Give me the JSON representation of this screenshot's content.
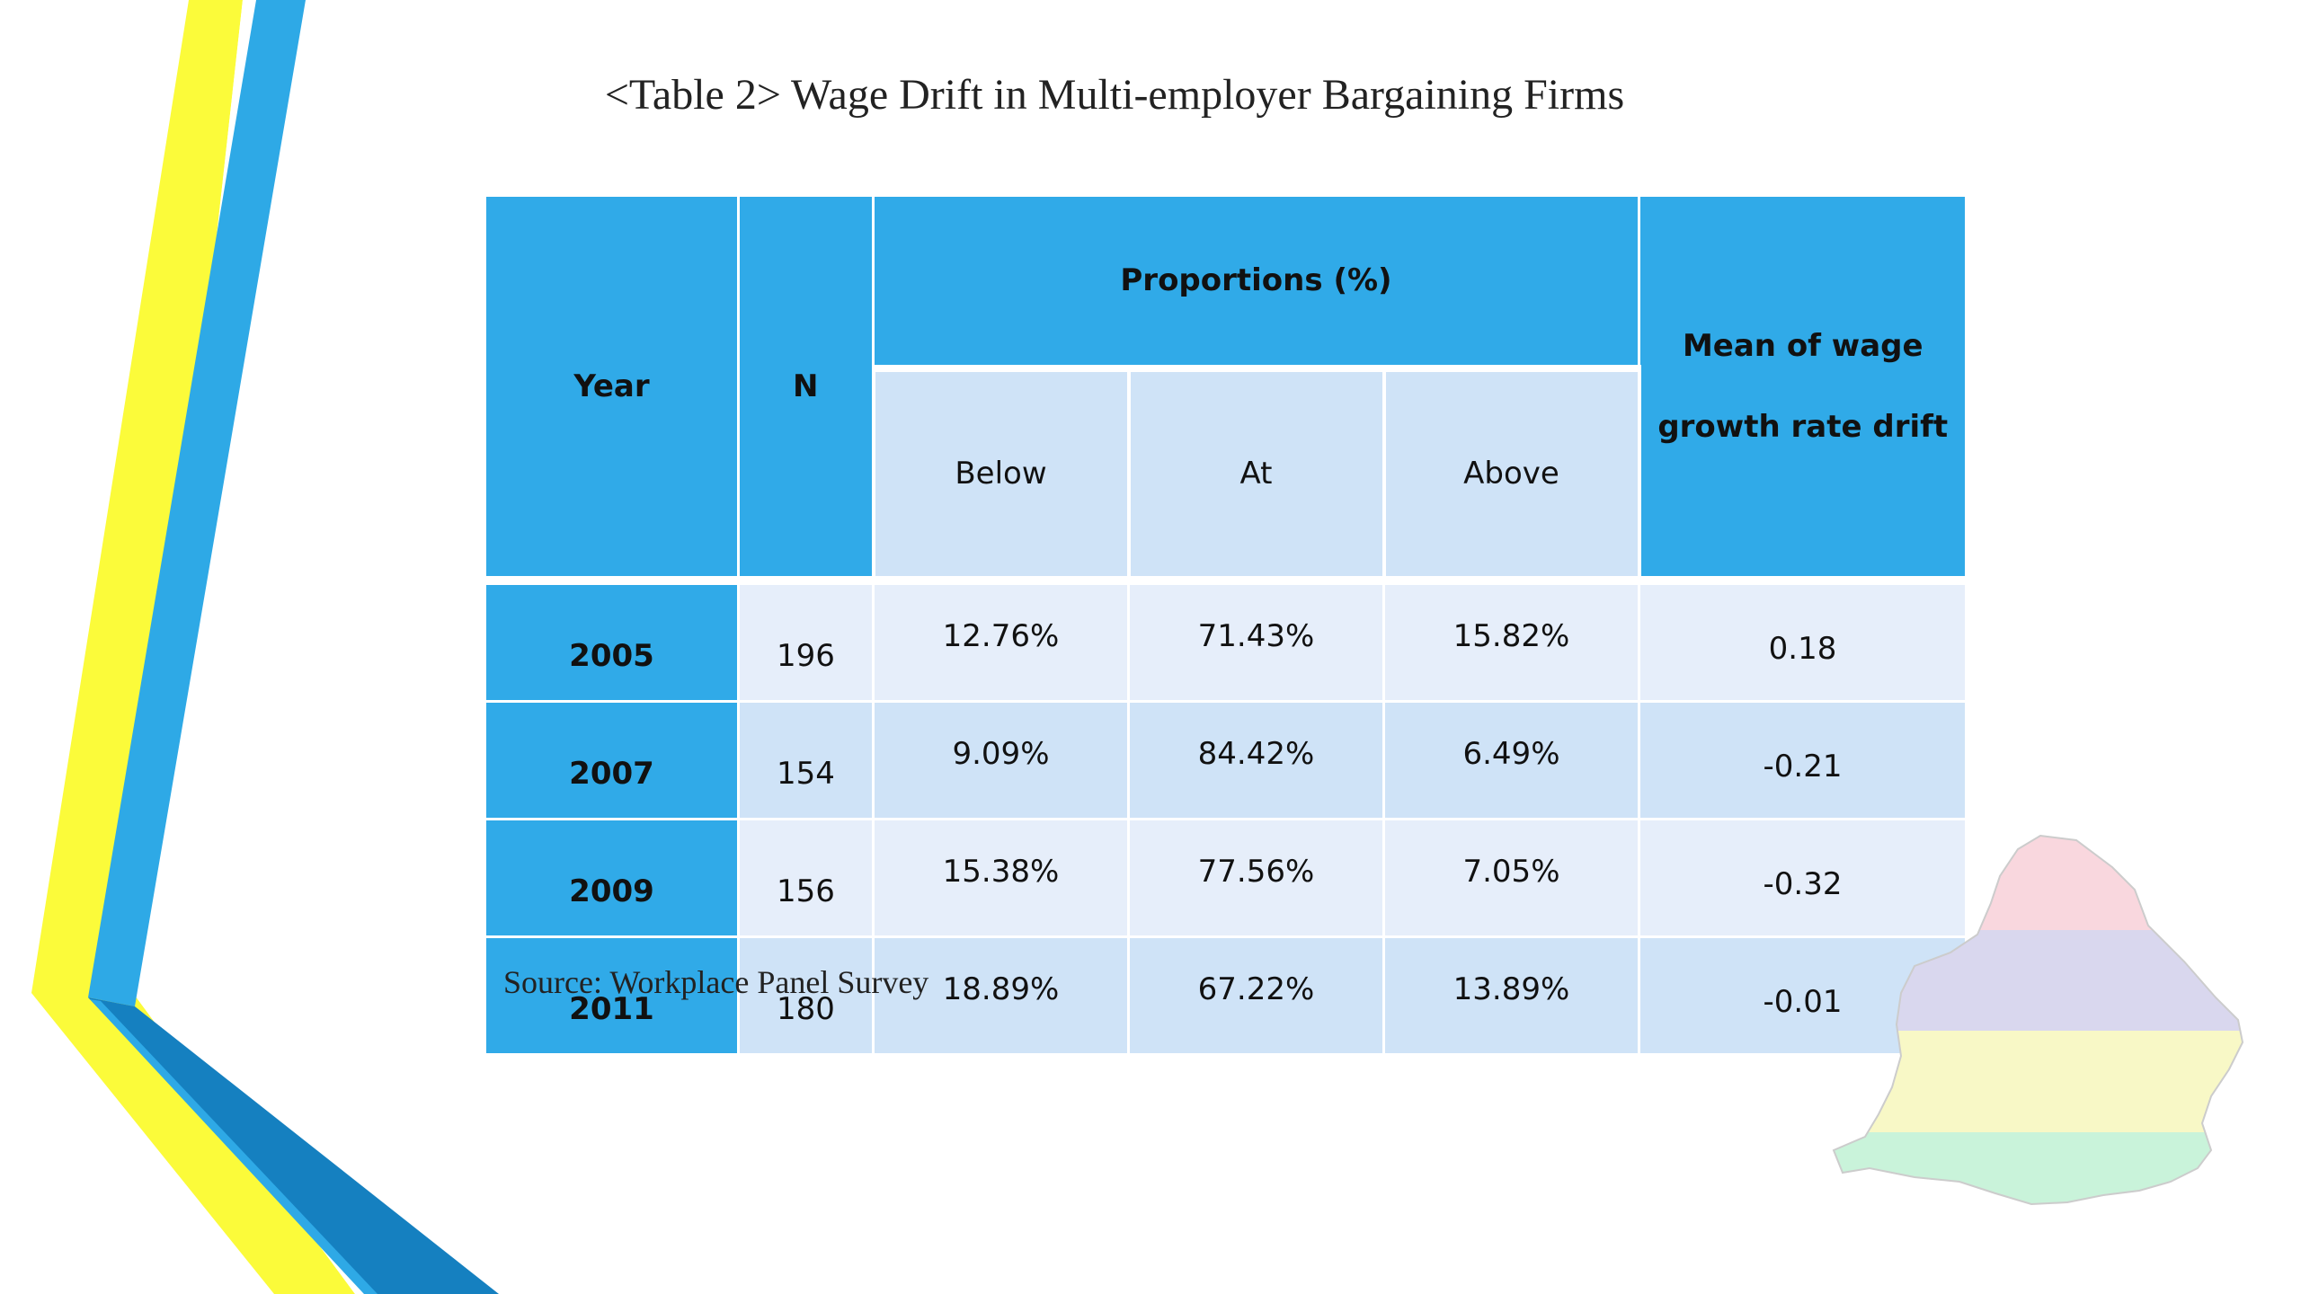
{
  "slide": {
    "title": "<Table 2> Wage Drift in Multi-employer Bargaining Firms",
    "source": "Source: Workplace Panel Survey"
  },
  "table": {
    "headers": {
      "year": "Year",
      "n": "N",
      "proportions": "Proportions (%)",
      "mean_line1": "Mean of wage",
      "mean_line2": "growth rate drift",
      "below": "Below",
      "at": "At",
      "above": "Above"
    },
    "rows": [
      {
        "year": "2005",
        "n": "196",
        "below": "12.76%",
        "at": "71.43%",
        "above": "15.82%",
        "mean": "0.18"
      },
      {
        "year": "2007",
        "n": "154",
        "below": "9.09%",
        "at": "84.42%",
        "above": "6.49%",
        "mean": "-0.21"
      },
      {
        "year": "2009",
        "n": "156",
        "below": "15.38%",
        "at": "77.56%",
        "above": "7.05%",
        "mean": "-0.32"
      },
      {
        "year": "2011",
        "n": "180",
        "below": "18.89%",
        "at": "67.22%",
        "above": "13.89%",
        "mean": "-0.01"
      }
    ]
  },
  "colors": {
    "header_blue": "#30aae8",
    "subheader_light_blue": "#cfe3f7",
    "row_light": "#e6eefa",
    "row_dark": "#cfe3f7",
    "deco_yellow": "#fbfb3a",
    "deco_blue": "#2ea9e6",
    "deco_dark_blue": "#1580c0",
    "map_stripes": [
      "#f9d7de",
      "#d9d7ee",
      "#f8f8c6",
      "#c9f3da"
    ]
  }
}
